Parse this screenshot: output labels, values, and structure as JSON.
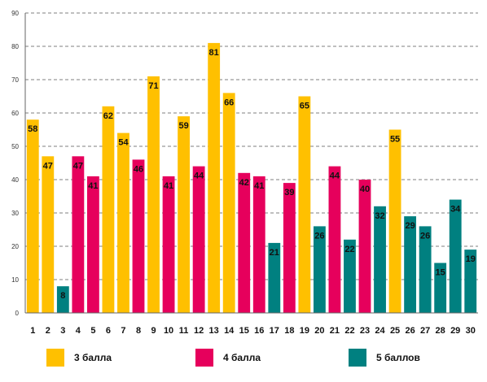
{
  "chart_data": {
    "type": "bar",
    "title": "",
    "xlabel": "",
    "ylabel": "",
    "ylim": [
      0,
      90
    ],
    "yticks": [
      "0",
      "10",
      "20",
      "30",
      "40",
      "50",
      "60",
      "70",
      "80",
      "90"
    ],
    "grid": true,
    "legend_position": "bottom",
    "categories": [
      "1",
      "2",
      "3",
      "4",
      "5",
      "6",
      "7",
      "8",
      "9",
      "10",
      "11",
      "12",
      "13",
      "14",
      "15",
      "16",
      "17",
      "18",
      "19",
      "20",
      "21",
      "22",
      "23",
      "24",
      "25",
      "26",
      "27",
      "28",
      "29",
      "30"
    ],
    "values": [
      58,
      47,
      8,
      47,
      41,
      62,
      54,
      46,
      71,
      41,
      59,
      44,
      81,
      66,
      42,
      41,
      21,
      39,
      65,
      26,
      44,
      22,
      40,
      32,
      55,
      29,
      26,
      15,
      34,
      19
    ],
    "groups": [
      "3 балла",
      "3 балла",
      "5 баллов",
      "4 балла",
      "4 балла",
      "3 балла",
      "3 балла",
      "4 балла",
      "3 балла",
      "4 балла",
      "3 балла",
      "4 балла",
      "3 балла",
      "3 балла",
      "4 балла",
      "4 балла",
      "5 баллов",
      "4 балла",
      "3 балла",
      "5 баллов",
      "4 балла",
      "5 баллов",
      "4 балла",
      "5 баллов",
      "3 балла",
      "5 баллов",
      "5 баллов",
      "5 баллов",
      "5 баллов",
      "5 баллов"
    ],
    "legend": [
      {
        "name": "3 балла",
        "color": "#FFC000"
      },
      {
        "name": "4 балла",
        "color": "#E6005C"
      },
      {
        "name": "5 баллов",
        "color": "#008080"
      }
    ]
  }
}
